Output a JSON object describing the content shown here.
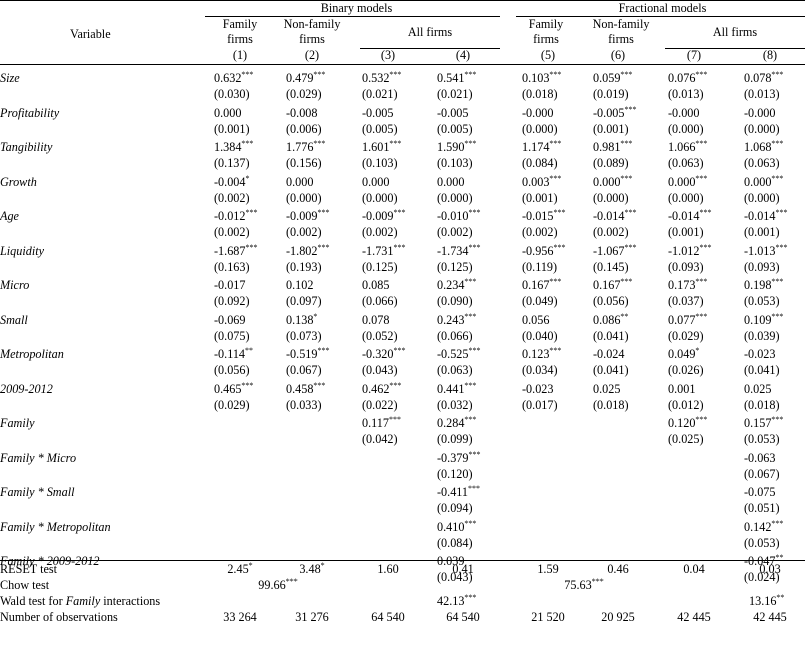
{
  "header": {
    "variable_label": "Variable",
    "groups": [
      "Binary models",
      "Fractional models"
    ],
    "col_labels": [
      "Family firms",
      "Non-family firms",
      "All firms",
      "Family firms",
      "Non-family firms",
      "All firms"
    ],
    "col_numbers": [
      "(1)",
      "(2)",
      "(3)",
      "(4)",
      "(5)",
      "(6)",
      "(7)",
      "(8)"
    ]
  },
  "rows": [
    {
      "name": "Size",
      "coef": [
        [
          "0.632",
          "***"
        ],
        [
          "0.479",
          "***"
        ],
        [
          "0.532",
          "***"
        ],
        [
          "0.541",
          "***"
        ],
        [
          "0.103",
          "***"
        ],
        [
          "0.059",
          "***"
        ],
        [
          "0.076",
          "***"
        ],
        [
          "0.078",
          "***"
        ]
      ],
      "se": [
        "(0.030)",
        "(0.029)",
        "(0.021)",
        "(0.021)",
        "(0.018)",
        "(0.019)",
        "(0.013)",
        "(0.013)"
      ]
    },
    {
      "name": "Profitability",
      "coef": [
        [
          "0.000",
          ""
        ],
        [
          "-0.008",
          ""
        ],
        [
          "-0.005",
          ""
        ],
        [
          "-0.005",
          ""
        ],
        [
          "-0.000",
          ""
        ],
        [
          "-0.005",
          "***"
        ],
        [
          "-0.000",
          ""
        ],
        [
          "-0.000",
          ""
        ]
      ],
      "se": [
        "(0.001)",
        "(0.006)",
        "(0.005)",
        "(0.005)",
        "(0.000)",
        "(0.001)",
        "(0.000)",
        "(0.000)"
      ]
    },
    {
      "name": "Tangibility",
      "coef": [
        [
          "1.384",
          "***"
        ],
        [
          "1.776",
          "***"
        ],
        [
          "1.601",
          "***"
        ],
        [
          "1.590",
          "***"
        ],
        [
          "1.174",
          "***"
        ],
        [
          "0.981",
          "***"
        ],
        [
          "1.066",
          "***"
        ],
        [
          "1.068",
          "***"
        ]
      ],
      "se": [
        "(0.137)",
        "(0.156)",
        "(0.103)",
        "(0.103)",
        "(0.084)",
        "(0.089)",
        "(0.063)",
        "(0.063)"
      ]
    },
    {
      "name": "Growth",
      "coef": [
        [
          "-0.004",
          "*"
        ],
        [
          "0.000",
          ""
        ],
        [
          "0.000",
          ""
        ],
        [
          "0.000",
          ""
        ],
        [
          "0.003",
          "***"
        ],
        [
          "0.000",
          "***"
        ],
        [
          "0.000",
          "***"
        ],
        [
          "0.000",
          "***"
        ]
      ],
      "se": [
        "(0.002)",
        "(0.000)",
        "(0.000)",
        "(0.000)",
        "(0.001)",
        "(0.000)",
        "(0.000)",
        "(0.000)"
      ]
    },
    {
      "name": "Age",
      "coef": [
        [
          "-0.012",
          "***"
        ],
        [
          "-0.009",
          "***"
        ],
        [
          "-0.009",
          "***"
        ],
        [
          "-0.010",
          "***"
        ],
        [
          "-0.015",
          "***"
        ],
        [
          "-0.014",
          "***"
        ],
        [
          "-0.014",
          "***"
        ],
        [
          "-0.014",
          "***"
        ]
      ],
      "se": [
        "(0.002)",
        "(0.002)",
        "(0.002)",
        "(0.002)",
        "(0.002)",
        "(0.002)",
        "(0.001)",
        "(0.001)"
      ]
    },
    {
      "name": "Liquidity",
      "coef": [
        [
          "-1.687",
          "***"
        ],
        [
          "-1.802",
          "***"
        ],
        [
          "-1.731",
          "***"
        ],
        [
          "-1.734",
          "***"
        ],
        [
          "-0.956",
          "***"
        ],
        [
          "-1.067",
          "***"
        ],
        [
          "-1.012",
          "***"
        ],
        [
          "-1.013",
          "***"
        ]
      ],
      "se": [
        "(0.163)",
        "(0.193)",
        "(0.125)",
        "(0.125)",
        "(0.119)",
        "(0.145)",
        "(0.093)",
        "(0.093)"
      ]
    },
    {
      "name": "Micro",
      "coef": [
        [
          "-0.017",
          ""
        ],
        [
          "0.102",
          ""
        ],
        [
          "0.085",
          ""
        ],
        [
          "0.234",
          "***"
        ],
        [
          "0.167",
          "***"
        ],
        [
          "0.167",
          "***"
        ],
        [
          "0.173",
          "***"
        ],
        [
          "0.198",
          "***"
        ]
      ],
      "se": [
        "(0.092)",
        "(0.097)",
        "(0.066)",
        "(0.090)",
        "(0.049)",
        "(0.056)",
        "(0.037)",
        "(0.053)"
      ]
    },
    {
      "name": "Small",
      "coef": [
        [
          "-0.069",
          ""
        ],
        [
          "0.138",
          "*"
        ],
        [
          "0.078",
          ""
        ],
        [
          "0.243",
          "***"
        ],
        [
          "0.056",
          ""
        ],
        [
          "0.086",
          "**"
        ],
        [
          "0.077",
          "***"
        ],
        [
          "0.109",
          "***"
        ]
      ],
      "se": [
        "(0.075)",
        "(0.073)",
        "(0.052)",
        "(0.066)",
        "(0.040)",
        "(0.041)",
        "(0.029)",
        "(0.039)"
      ]
    },
    {
      "name": "Metropolitan",
      "coef": [
        [
          "-0.114",
          "**"
        ],
        [
          "-0.519",
          "***"
        ],
        [
          "-0.320",
          "***"
        ],
        [
          "-0.525",
          "***"
        ],
        [
          "0.123",
          "***"
        ],
        [
          "-0.024",
          ""
        ],
        [
          "0.049",
          "*"
        ],
        [
          "-0.023",
          ""
        ]
      ],
      "se": [
        "(0.056)",
        "(0.067)",
        "(0.043)",
        "(0.063)",
        "(0.034)",
        "(0.041)",
        "(0.026)",
        "(0.041)"
      ]
    },
    {
      "name": "2009-2012",
      "coef": [
        [
          "0.465",
          "***"
        ],
        [
          "0.458",
          "***"
        ],
        [
          "0.462",
          "***"
        ],
        [
          "0.441",
          "***"
        ],
        [
          "-0.023",
          ""
        ],
        [
          "0.025",
          ""
        ],
        [
          "0.001",
          ""
        ],
        [
          "0.025",
          ""
        ]
      ],
      "se": [
        "(0.029)",
        "(0.033)",
        "(0.022)",
        "(0.032)",
        "(0.017)",
        "(0.018)",
        "(0.012)",
        "(0.018)"
      ]
    },
    {
      "name": "Family",
      "coef": [
        [
          "",
          ""
        ],
        [
          "",
          ""
        ],
        [
          "0.117",
          "***"
        ],
        [
          "0.284",
          "***"
        ],
        [
          "",
          ""
        ],
        [
          "",
          ""
        ],
        [
          "0.120",
          "***"
        ],
        [
          "0.157",
          "***"
        ]
      ],
      "se": [
        "",
        "",
        "(0.042)",
        "(0.099)",
        "",
        "",
        "(0.025)",
        "(0.053)"
      ]
    },
    {
      "name": "Family * Micro",
      "coef": [
        [
          "",
          ""
        ],
        [
          "",
          ""
        ],
        [
          "",
          ""
        ],
        [
          "-0.379",
          "***"
        ],
        [
          "",
          ""
        ],
        [
          "",
          ""
        ],
        [
          "",
          ""
        ],
        [
          "-0.063",
          ""
        ]
      ],
      "se": [
        "",
        "",
        "",
        "(0.120)",
        "",
        "",
        "",
        "(0.067)"
      ]
    },
    {
      "name": "Family * Small",
      "coef": [
        [
          "",
          ""
        ],
        [
          "",
          ""
        ],
        [
          "",
          ""
        ],
        [
          "-0.411",
          "***"
        ],
        [
          "",
          ""
        ],
        [
          "",
          ""
        ],
        [
          "",
          ""
        ],
        [
          "-0.075",
          ""
        ]
      ],
      "se": [
        "",
        "",
        "",
        "(0.094)",
        "",
        "",
        "",
        "(0.051)"
      ]
    },
    {
      "name": "Family * Metropolitan",
      "coef": [
        [
          "",
          ""
        ],
        [
          "",
          ""
        ],
        [
          "",
          ""
        ],
        [
          "0.410",
          "***"
        ],
        [
          "",
          ""
        ],
        [
          "",
          ""
        ],
        [
          "",
          ""
        ],
        [
          "0.142",
          "***"
        ]
      ],
      "se": [
        "",
        "",
        "",
        "(0.084)",
        "",
        "",
        "",
        "(0.053)"
      ]
    },
    {
      "name": "Family * 2009-2012",
      "coef": [
        [
          "",
          ""
        ],
        [
          "",
          ""
        ],
        [
          "",
          ""
        ],
        [
          "0.039",
          ""
        ],
        [
          "",
          ""
        ],
        [
          "",
          ""
        ],
        [
          "",
          ""
        ],
        [
          "-0.047",
          "**"
        ]
      ],
      "se": [
        "",
        "",
        "",
        "(0.043)",
        "",
        "",
        "",
        "(0.024)"
      ]
    }
  ],
  "footer": {
    "reset": {
      "label": "RESET test",
      "vals": [
        [
          "2.45",
          "*"
        ],
        [
          "3.48",
          "*"
        ],
        [
          "1.60",
          ""
        ],
        [
          "0.41",
          ""
        ],
        [
          "1.59",
          ""
        ],
        [
          "0.46",
          ""
        ],
        [
          "0.04",
          ""
        ],
        [
          "0.03",
          ""
        ]
      ]
    },
    "chow": {
      "label": "Chow test",
      "binary": [
        "99.66",
        "***"
      ],
      "fractional": [
        "75.63",
        "***"
      ]
    },
    "wald": {
      "label_pre": "Wald test for ",
      "label_it": "Family",
      "label_post": " interactions",
      "col4": [
        "42.13",
        "***"
      ],
      "col8": [
        "13.16",
        "**"
      ]
    },
    "nobs": {
      "label": "Number of observations",
      "vals": [
        "33 264",
        "31 276",
        "64 540",
        "64 540",
        "21 520",
        "20 925",
        "42 445",
        "42 445"
      ]
    }
  }
}
